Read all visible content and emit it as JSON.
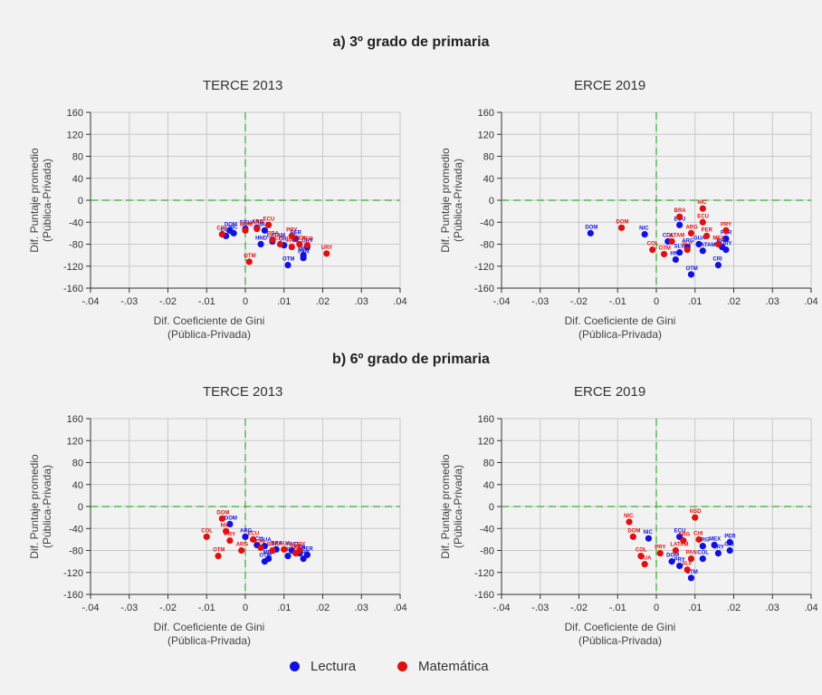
{
  "legend": {
    "lectura": "Lectura",
    "matematica": "Matemática"
  },
  "colors": {
    "lectura": "#1010e0",
    "matematica": "#e01010",
    "grid": "#c8c8c8",
    "zero_line": "#30b030"
  },
  "sections": [
    {
      "title": "a) 3º grado de primaria"
    },
    {
      "title": "b) 6º grado de primaria"
    }
  ],
  "chart_data": [
    {
      "type": "scatter",
      "section": "a) 3º grado de primaria",
      "title": "TERCE 2013",
      "xlabel": "Dif. Coeficiente de Gini",
      "xlabel2": "(Pública-Privada)",
      "ylabel": "Dif. Puntaje promedio",
      "ylabel2": "(Pública-Privada)",
      "xlim": [
        -0.04,
        0.04
      ],
      "ylim": [
        -160,
        160
      ],
      "xticks": [
        -0.04,
        -0.03,
        -0.02,
        -0.01,
        0,
        0.01,
        0.02,
        0.03,
        0.04
      ],
      "xticklabels": [
        "-.04",
        "-.03",
        "-.02",
        "-.01",
        "0",
        ".01",
        ".02",
        ".03",
        ".04"
      ],
      "yticks": [
        160,
        120,
        80,
        40,
        0,
        -40,
        -80,
        -120,
        -160
      ],
      "yticklabels": [
        "160",
        "120",
        "80",
        "40",
        "0",
        "-40",
        "-80",
        "-120",
        "-160"
      ],
      "series": [
        {
          "name": "Lectura",
          "key": "lectura",
          "points": [
            {
              "x": -0.005,
              "y": -65,
              "label": "COL"
            },
            {
              "x": -0.004,
              "y": -55,
              "label": "DOM"
            },
            {
              "x": -0.003,
              "y": -60,
              "label": "NIC"
            },
            {
              "x": 0.0,
              "y": -52,
              "label": "ECU"
            },
            {
              "x": 0.003,
              "y": -50,
              "label": "ARG"
            },
            {
              "x": 0.005,
              "y": -55,
              "label": "GUA"
            },
            {
              "x": 0.004,
              "y": -80,
              "label": "HND"
            },
            {
              "x": 0.007,
              "y": -75,
              "label": "LATAM"
            },
            {
              "x": 0.01,
              "y": -82,
              "label": "CRI"
            },
            {
              "x": 0.011,
              "y": -118,
              "label": "OTM"
            },
            {
              "x": 0.013,
              "y": -70,
              "label": "PER"
            },
            {
              "x": 0.015,
              "y": -105,
              "label": "PAN"
            },
            {
              "x": 0.016,
              "y": -85,
              "label": "URY"
            },
            {
              "x": 0.015,
              "y": -100,
              "label": "MEX"
            }
          ]
        },
        {
          "name": "Matemática",
          "key": "matematica",
          "points": [
            {
              "x": -0.006,
              "y": -62,
              "label": "COL"
            },
            {
              "x": 0.0,
              "y": -55,
              "label": "DOM"
            },
            {
              "x": 0.003,
              "y": -52,
              "label": "ARG"
            },
            {
              "x": 0.006,
              "y": -45,
              "label": "ECU"
            },
            {
              "x": 0.007,
              "y": -72,
              "label": "BRA"
            },
            {
              "x": 0.009,
              "y": -80,
              "label": "CHI"
            },
            {
              "x": 0.012,
              "y": -65,
              "label": "PRY"
            },
            {
              "x": 0.012,
              "y": -85,
              "label": "PAN"
            },
            {
              "x": 0.014,
              "y": -80,
              "label": "MEX"
            },
            {
              "x": 0.016,
              "y": -82,
              "label": "PER"
            },
            {
              "x": 0.021,
              "y": -97,
              "label": "URY"
            },
            {
              "x": 0.001,
              "y": -112,
              "label": "OTM"
            }
          ]
        }
      ]
    },
    {
      "type": "scatter",
      "section": "a) 3º grado de primaria",
      "title": "ERCE 2019",
      "xlabel": "Dif. Coeficiente de Gini",
      "xlabel2": "(Pública-Privada)",
      "ylabel": "Dif. Puntaje promedio",
      "ylabel2": "(Pública-Privada)",
      "xlim": [
        -0.04,
        0.04
      ],
      "ylim": [
        -160,
        160
      ],
      "xticks": [
        -0.04,
        -0.03,
        -0.02,
        -0.01,
        0,
        0.01,
        0.02,
        0.03,
        0.04
      ],
      "xticklabels": [
        "-.04",
        "-.03",
        "-.02",
        "-.01",
        "0",
        ".01",
        ".02",
        ".03",
        ".04"
      ],
      "yticks": [
        160,
        120,
        80,
        40,
        0,
        -40,
        -80,
        -120,
        -160
      ],
      "yticklabels": [
        "160",
        "120",
        "80",
        "40",
        "0",
        "-40",
        "-80",
        "-120",
        "-160"
      ],
      "series": [
        {
          "name": "Lectura",
          "key": "lectura",
          "points": [
            {
              "x": -0.017,
              "y": -60,
              "label": "DOM"
            },
            {
              "x": -0.003,
              "y": -62,
              "label": "NIC"
            },
            {
              "x": 0.006,
              "y": -45,
              "label": "ECU"
            },
            {
              "x": 0.003,
              "y": -75,
              "label": "COL"
            },
            {
              "x": 0.008,
              "y": -85,
              "label": "ARG"
            },
            {
              "x": 0.011,
              "y": -80,
              "label": "GUA"
            },
            {
              "x": 0.012,
              "y": -92,
              "label": "LATAM"
            },
            {
              "x": 0.006,
              "y": -95,
              "label": "SLV"
            },
            {
              "x": 0.005,
              "y": -108,
              "label": "HND"
            },
            {
              "x": 0.009,
              "y": -135,
              "label": "OTM"
            },
            {
              "x": 0.017,
              "y": -85,
              "label": "BRA"
            },
            {
              "x": 0.018,
              "y": -70,
              "label": "PER"
            },
            {
              "x": 0.016,
              "y": -118,
              "label": "CRI"
            },
            {
              "x": 0.018,
              "y": -90,
              "label": "URY"
            }
          ]
        },
        {
          "name": "Matemática",
          "key": "matematica",
          "points": [
            {
              "x": -0.009,
              "y": -50,
              "label": "DOM"
            },
            {
              "x": -0.001,
              "y": -90,
              "label": "COL"
            },
            {
              "x": 0.012,
              "y": -15,
              "label": "NIC"
            },
            {
              "x": 0.012,
              "y": -40,
              "label": "ECU"
            },
            {
              "x": 0.006,
              "y": -30,
              "label": "BRA"
            },
            {
              "x": 0.004,
              "y": -75,
              "label": "LATAM"
            },
            {
              "x": 0.009,
              "y": -60,
              "label": "ARG"
            },
            {
              "x": 0.013,
              "y": -65,
              "label": "PER"
            },
            {
              "x": 0.016,
              "y": -80,
              "label": "MEX"
            },
            {
              "x": 0.018,
              "y": -55,
              "label": "PRY"
            },
            {
              "x": 0.008,
              "y": -90,
              "label": "SLV"
            },
            {
              "x": 0.002,
              "y": -98,
              "label": "OTM"
            }
          ]
        }
      ]
    },
    {
      "type": "scatter",
      "section": "b) 6º grado de primaria",
      "title": "TERCE 2013",
      "xlabel": "Dif. Coeficiente de Gini",
      "xlabel2": "(Pública-Privada)",
      "ylabel": "Dif. Puntaje promedio",
      "ylabel2": "(Pública-Privada)",
      "xlim": [
        -0.04,
        0.04
      ],
      "ylim": [
        -160,
        160
      ],
      "xticks": [
        -0.04,
        -0.03,
        -0.02,
        -0.01,
        0,
        0.01,
        0.02,
        0.03,
        0.04
      ],
      "xticklabels": [
        "-.04",
        "-.03",
        "-.02",
        "-.01",
        "0",
        ".01",
        ".02",
        ".03",
        ".04"
      ],
      "yticks": [
        160,
        120,
        80,
        40,
        0,
        -40,
        -80,
        -120,
        -160
      ],
      "yticklabels": [
        "160",
        "120",
        "80",
        "40",
        "0",
        "-40",
        "-80",
        "-120",
        "-160"
      ],
      "series": [
        {
          "name": "Lectura",
          "key": "lectura",
          "points": [
            {
              "x": -0.004,
              "y": -32,
              "label": "DOM"
            },
            {
              "x": 0.0,
              "y": -55,
              "label": "ARG"
            },
            {
              "x": 0.003,
              "y": -70,
              "label": "ECU"
            },
            {
              "x": 0.005,
              "y": -72,
              "label": "GUA"
            },
            {
              "x": 0.008,
              "y": -78,
              "label": "BRA"
            },
            {
              "x": 0.006,
              "y": -95,
              "label": "MEX"
            },
            {
              "x": 0.011,
              "y": -90,
              "label": "CRI"
            },
            {
              "x": 0.012,
              "y": -80,
              "label": "HND"
            },
            {
              "x": 0.014,
              "y": -85,
              "label": "PAN"
            },
            {
              "x": 0.016,
              "y": -88,
              "label": "PER"
            },
            {
              "x": 0.015,
              "y": -95,
              "label": "URY"
            },
            {
              "x": 0.005,
              "y": -100,
              "label": "OTM"
            }
          ]
        },
        {
          "name": "Matemática",
          "key": "matematica",
          "points": [
            {
              "x": -0.01,
              "y": -55,
              "label": "COL"
            },
            {
              "x": -0.006,
              "y": -22,
              "label": "DOM"
            },
            {
              "x": -0.005,
              "y": -45,
              "label": "NIC"
            },
            {
              "x": -0.004,
              "y": -62,
              "label": "PRY"
            },
            {
              "x": -0.001,
              "y": -80,
              "label": "ARG"
            },
            {
              "x": 0.002,
              "y": -60,
              "label": "ECU"
            },
            {
              "x": 0.004,
              "y": -75,
              "label": "CHI"
            },
            {
              "x": 0.007,
              "y": -80,
              "label": "BRA"
            },
            {
              "x": 0.01,
              "y": -78,
              "label": "GUA"
            },
            {
              "x": 0.013,
              "y": -85,
              "label": "PER"
            },
            {
              "x": 0.014,
              "y": -80,
              "label": "URY"
            },
            {
              "x": -0.007,
              "y": -90,
              "label": "OTM"
            }
          ]
        }
      ]
    },
    {
      "type": "scatter",
      "section": "b) 6º grado de primaria",
      "title": "ERCE 2019",
      "xlabel": "Dif. Coeficiente de Gini",
      "xlabel2": "(Pública-Privada)",
      "ylabel": "Dif. Puntaje promedio",
      "ylabel2": "(Pública-Privada)",
      "xlim": [
        -0.04,
        0.04
      ],
      "ylim": [
        -160,
        160
      ],
      "xticks": [
        -0.04,
        -0.03,
        -0.02,
        -0.01,
        0,
        0.01,
        0.02,
        0.03,
        0.04
      ],
      "xticklabels": [
        "-.04",
        "-.03",
        "-.02",
        "-.01",
        "0",
        ".01",
        ".02",
        ".03",
        ".04"
      ],
      "yticks": [
        160,
        120,
        80,
        40,
        0,
        -40,
        -80,
        -120,
        -160
      ],
      "yticklabels": [
        "160",
        "120",
        "80",
        "40",
        "0",
        "-40",
        "-80",
        "-120",
        "-160"
      ],
      "series": [
        {
          "name": "Lectura",
          "key": "lectura",
          "points": [
            {
              "x": -0.002,
              "y": -58,
              "label": "NIC"
            },
            {
              "x": 0.006,
              "y": -55,
              "label": "ECU"
            },
            {
              "x": 0.012,
              "y": -72,
              "label": "ARG"
            },
            {
              "x": 0.015,
              "y": -70,
              "label": "MEX"
            },
            {
              "x": 0.019,
              "y": -65,
              "label": "PER"
            },
            {
              "x": 0.019,
              "y": -80,
              "label": "CRI"
            },
            {
              "x": 0.016,
              "y": -85,
              "label": "URY"
            },
            {
              "x": 0.012,
              "y": -95,
              "label": "COL"
            },
            {
              "x": 0.004,
              "y": -100,
              "label": "DOM"
            },
            {
              "x": 0.009,
              "y": -130,
              "label": "OTM"
            },
            {
              "x": 0.006,
              "y": -108,
              "label": "PRY"
            }
          ]
        },
        {
          "name": "Matemática",
          "key": "matematica",
          "points": [
            {
              "x": -0.007,
              "y": -28,
              "label": "NIC"
            },
            {
              "x": -0.006,
              "y": -55,
              "label": "DOM"
            },
            {
              "x": -0.004,
              "y": -90,
              "label": "COL"
            },
            {
              "x": -0.003,
              "y": -105,
              "label": "GUA"
            },
            {
              "x": 0.001,
              "y": -85,
              "label": "PRY"
            },
            {
              "x": 0.005,
              "y": -80,
              "label": "LATAM"
            },
            {
              "x": 0.007,
              "y": -62,
              "label": "ARG"
            },
            {
              "x": 0.01,
              "y": -20,
              "label": "NSD"
            },
            {
              "x": 0.011,
              "y": -60,
              "label": "CHI"
            },
            {
              "x": 0.009,
              "y": -95,
              "label": "PAN"
            },
            {
              "x": 0.008,
              "y": -115,
              "label": "SLV"
            }
          ]
        }
      ]
    }
  ]
}
